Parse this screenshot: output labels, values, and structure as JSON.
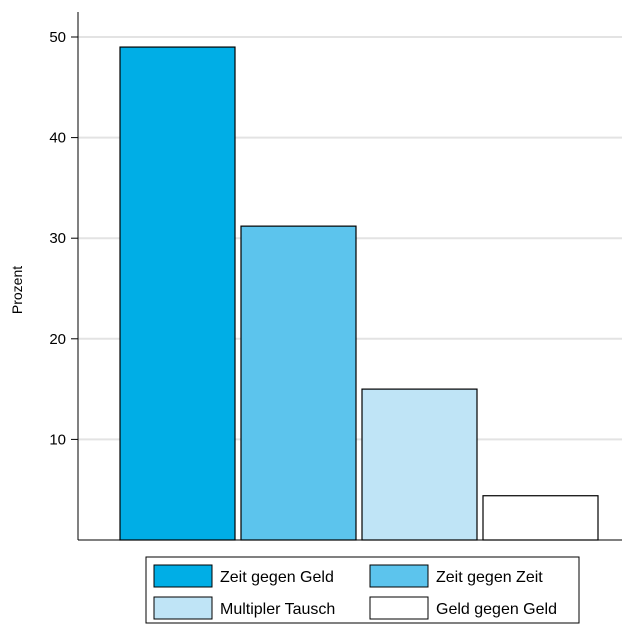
{
  "chart_data": {
    "type": "bar",
    "title": "",
    "xlabel": "",
    "ylabel": "Prozent",
    "ylim": [
      0,
      50
    ],
    "yticks": [
      10,
      20,
      30,
      40,
      50
    ],
    "grid": true,
    "legend_position": "bottom",
    "categories": [
      "Zeit gegen Geld",
      "Zeit gegen Zeit",
      "Multipler Tausch",
      "Geld gegen Geld"
    ],
    "values": [
      49,
      31.2,
      15,
      4.4
    ],
    "colors": [
      "#00aee6",
      "#5cc4ed",
      "#bfe4f6",
      "#ffffff"
    ]
  }
}
